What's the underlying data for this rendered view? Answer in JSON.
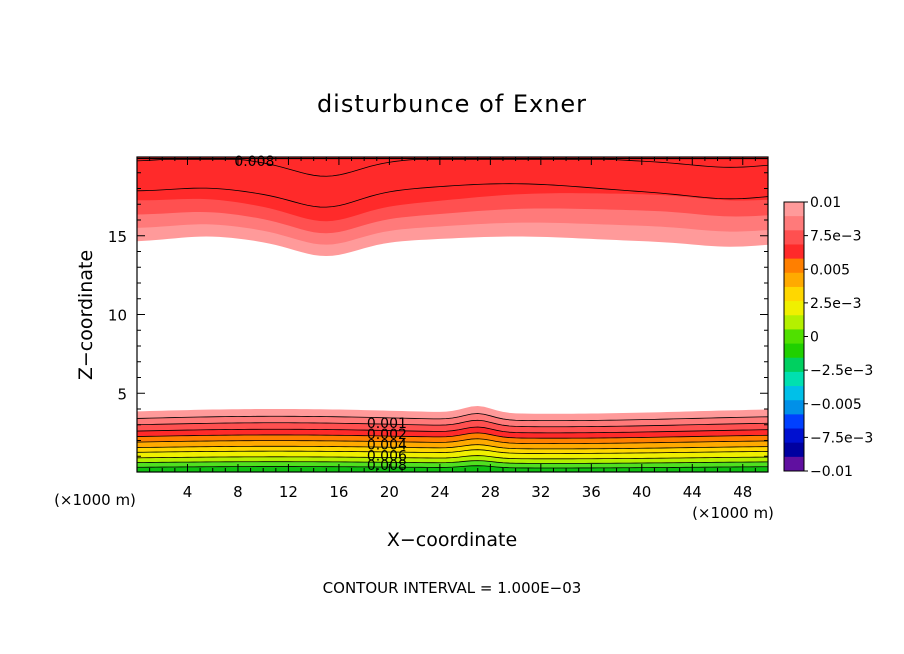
{
  "chart_data": {
    "type": "contour",
    "title": "disturbunce of Exner",
    "xlabel": "X−coordinate",
    "ylabel": "Z−coordinate",
    "x_unit_left": "(×1000 m)",
    "x_unit_right": "(×1000 m)",
    "footer": "CONTOUR INTERVAL = 1.000E−03",
    "xlim": [
      0,
      50
    ],
    "ylim": [
      0,
      20
    ],
    "x_ticks": [
      4,
      8,
      12,
      16,
      20,
      24,
      28,
      32,
      36,
      40,
      44,
      48
    ],
    "x_tick_labels": [
      "4",
      "8",
      "12",
      "16",
      "20",
      "24",
      "28",
      "32",
      "36",
      "40",
      "44",
      "48"
    ],
    "y_ticks": [
      5,
      10,
      15
    ],
    "y_tick_labels": [
      "5",
      "10",
      "15"
    ],
    "colorbar": {
      "labels": [
        "0.01",
        "7.5e−3",
        "0.005",
        "2.5e−3",
        "0",
        "−2.5e−3",
        "−0.005",
        "−7.5e−3",
        "−0.01"
      ],
      "colors": [
        "#ff9a9a",
        "#ff7a7a",
        "#ff5050",
        "#ff2a2a",
        "#ff7f00",
        "#ffaa00",
        "#ffd700",
        "#f0f000",
        "#b4f000",
        "#50e000",
        "#20d000",
        "#00d060",
        "#00e0b0",
        "#00c0e8",
        "#0090e8",
        "#0040ff",
        "#0010d0",
        "#0000a0",
        "#6010a0"
      ]
    },
    "bottom_contours": {
      "base_z": [
        0.3,
        0.6,
        0.9,
        1.25,
        1.55,
        1.9,
        2.25,
        2.6,
        3.0,
        3.4,
        3.85
      ],
      "fill_colors": [
        "#10c010",
        "#50e020",
        "#b4f000",
        "#f0f000",
        "#ffd700",
        "#ffaa00",
        "#ff7f00",
        "#ff2a2a",
        "#ff5050",
        "#ff7a7a",
        "#ff9a9a"
      ],
      "labels": [
        "0.001",
        "0.002",
        "0.004",
        "0.006",
        "0.008"
      ]
    },
    "top_contours": {
      "fill_colors": [
        "#ff2a2a",
        "#ff5050",
        "#ff7a7a",
        "#ff9a9a"
      ],
      "label": "0.008"
    }
  }
}
